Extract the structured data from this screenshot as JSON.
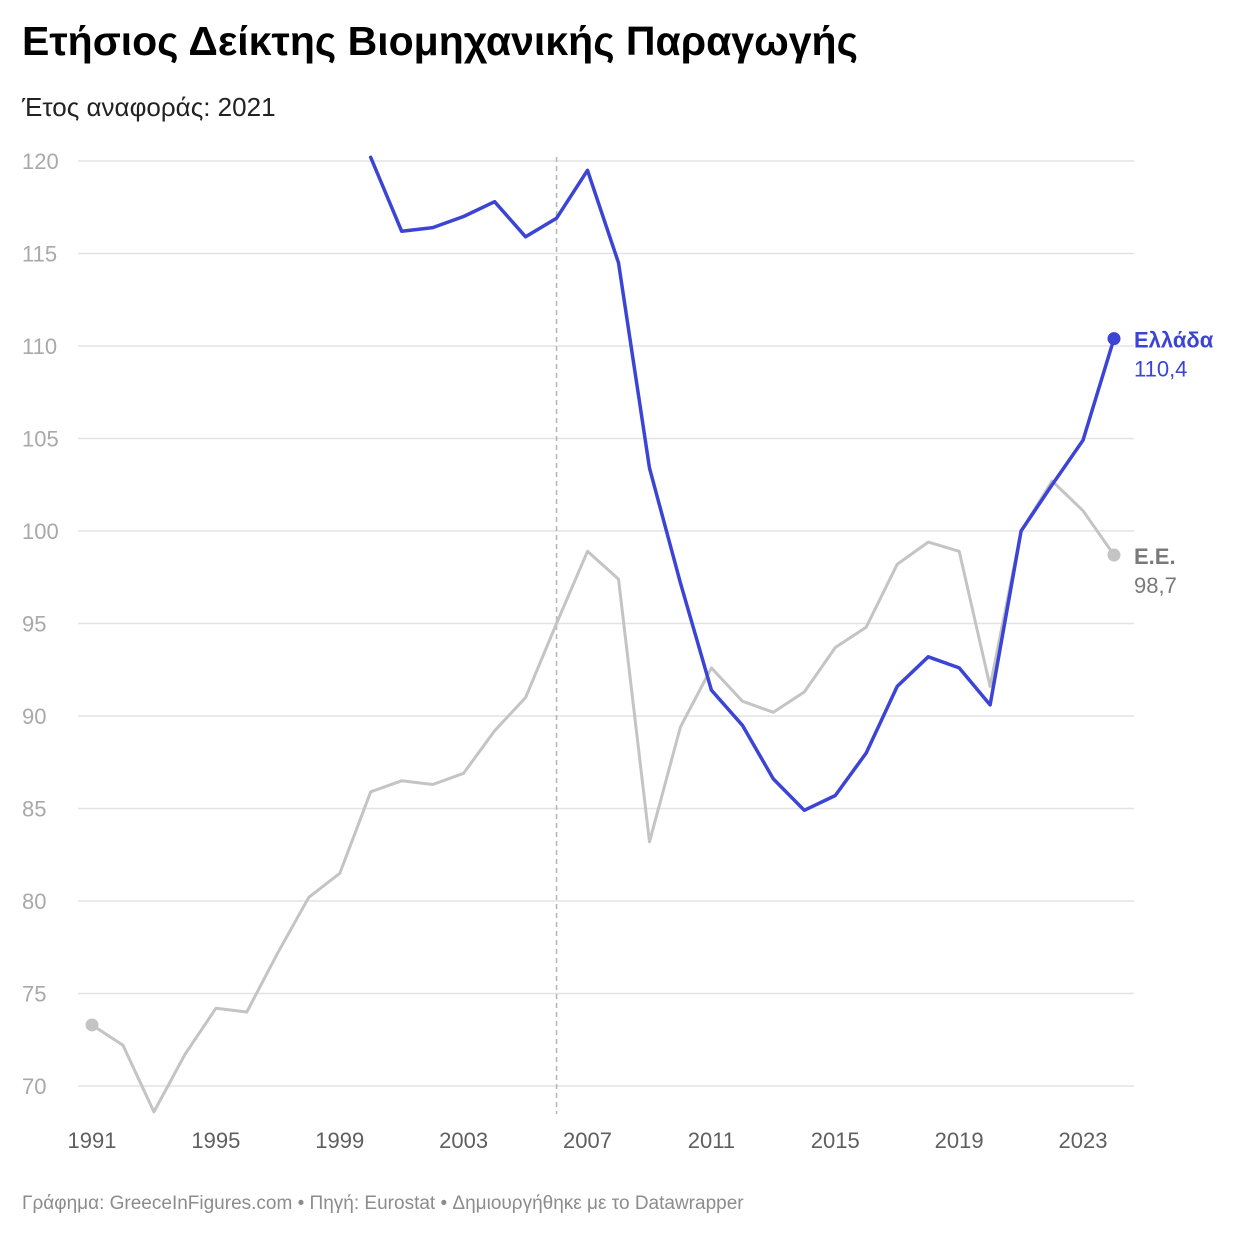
{
  "title": "Ετήσιος Δείκτης Βιομηχανικής Παραγωγής",
  "subtitle": "Έτος αναφοράς: 2021",
  "footer": "Γράφημα: GreeceInFigures.com • Πηγή: Eurostat • Δημιουργήθηκε με το Datawrapper",
  "chart_data": {
    "type": "line",
    "title": "Ετήσιος Δείκτης Βιομηχανικής Παραγωγής",
    "subtitle": "Έτος αναφοράς: 2021",
    "xlim": [
      1991,
      2024
    ],
    "ylim": [
      68,
      122
    ],
    "x_ticks": [
      1991,
      1995,
      1999,
      2003,
      2007,
      2011,
      2015,
      2019,
      2023
    ],
    "y_ticks": [
      70,
      75,
      80,
      85,
      90,
      95,
      100,
      105,
      110,
      115,
      120
    ],
    "grid": true,
    "reference_line_x": 2006,
    "series": [
      {
        "name": "Ε.Ε.",
        "color": "#c4c4c4",
        "end_label": "98,7",
        "x": [
          1991,
          1992,
          1993,
          1994,
          1995,
          1996,
          1997,
          1998,
          1999,
          2000,
          2001,
          2002,
          2003,
          2004,
          2005,
          2006,
          2007,
          2008,
          2009,
          2010,
          2011,
          2012,
          2013,
          2014,
          2015,
          2016,
          2017,
          2018,
          2019,
          2020,
          2021,
          2022,
          2023,
          2024
        ],
        "values": [
          73.3,
          72.2,
          68.6,
          71.7,
          74.2,
          74.0,
          77.2,
          80.2,
          81.5,
          85.9,
          86.5,
          86.3,
          86.9,
          89.2,
          91.0,
          95.0,
          98.9,
          97.4,
          83.2,
          89.4,
          92.6,
          90.8,
          90.2,
          91.3,
          93.7,
          94.8,
          98.2,
          99.4,
          98.9,
          91.6,
          100.0,
          102.7,
          101.1,
          98.7
        ]
      },
      {
        "name": "Ελλάδα",
        "color": "#3b44d4",
        "end_label": "110,4",
        "x": [
          2000,
          2001,
          2002,
          2003,
          2004,
          2005,
          2006,
          2007,
          2008,
          2009,
          2010,
          2011,
          2012,
          2013,
          2014,
          2015,
          2016,
          2017,
          2018,
          2019,
          2020,
          2021,
          2022,
          2023,
          2024
        ],
        "values": [
          120.2,
          116.2,
          116.4,
          117.0,
          117.8,
          115.9,
          116.9,
          119.5,
          114.5,
          103.4,
          97.2,
          91.4,
          89.5,
          86.6,
          84.9,
          85.7,
          88.0,
          91.6,
          93.2,
          92.6,
          90.6,
          100.0,
          102.5,
          104.9,
          110.4
        ]
      }
    ]
  }
}
